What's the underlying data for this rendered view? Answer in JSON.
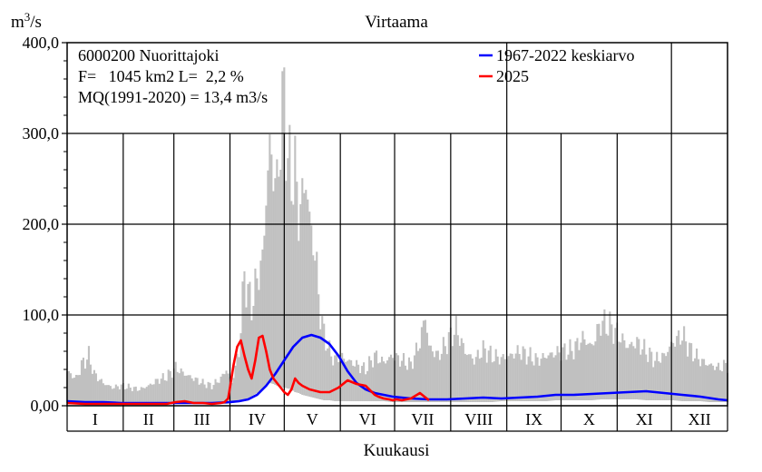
{
  "chart_data": {
    "type": "area",
    "title": "Virtaama",
    "ylabel_base": "m",
    "ylabel_exp": "3",
    "ylabel_tail": "/s",
    "xlabel": "Kuukausi",
    "ylim": [
      0,
      400
    ],
    "yticks": [
      "0,00",
      "100,0",
      "200,0",
      "300,0",
      "400,0"
    ],
    "ytick_values": [
      0,
      100,
      200,
      300,
      400
    ],
    "months": [
      "I",
      "II",
      "III",
      "IV",
      "V",
      "VI",
      "VII",
      "VIII",
      "IX",
      "X",
      "XI",
      "XII"
    ],
    "grid": true,
    "legend_position": "top-right",
    "info": {
      "line1": "6000200 Nuorittajoki",
      "line2": "F=   1045 km2 L=  2,2 %",
      "line3": "MQ(1991-2020) = 13,4 m3/s"
    },
    "range_series": {
      "name": "",
      "color": "#c0c0c0",
      "day": [
        0,
        5,
        8,
        12,
        15,
        20,
        25,
        30,
        35,
        40,
        45,
        50,
        55,
        60,
        65,
        70,
        75,
        80,
        85,
        88,
        91,
        95,
        98,
        100,
        102,
        105,
        108,
        110,
        112,
        114,
        116,
        118,
        120,
        122,
        124,
        126,
        128,
        130,
        132,
        134,
        136,
        138,
        140,
        142,
        145,
        148,
        150,
        155,
        160,
        165,
        170,
        175,
        180,
        185,
        190,
        195,
        198,
        200,
        205,
        210,
        215,
        220,
        225,
        230,
        235,
        240,
        245,
        250,
        255,
        260,
        265,
        270,
        275,
        280,
        285,
        290,
        295,
        300,
        305,
        310,
        315,
        320,
        325,
        330,
        335,
        340,
        345,
        350,
        355,
        360,
        365
      ],
      "max": [
        38,
        30,
        45,
        55,
        35,
        25,
        20,
        22,
        20,
        18,
        22,
        28,
        32,
        42,
        35,
        30,
        25,
        22,
        30,
        40,
        25,
        60,
        145,
        125,
        110,
        140,
        160,
        230,
        285,
        260,
        240,
        300,
        345,
        270,
        250,
        260,
        210,
        230,
        250,
        205,
        180,
        150,
        100,
        80,
        60,
        50,
        55,
        50,
        45,
        40,
        55,
        48,
        55,
        50,
        45,
        70,
        100,
        65,
        55,
        70,
        85,
        60,
        50,
        62,
        55,
        52,
        55,
        60,
        55,
        50,
        55,
        58,
        60,
        62,
        75,
        65,
        92,
        88,
        78,
        65,
        70,
        60,
        50,
        55,
        70,
        78,
        60,
        50,
        45,
        42,
        45
      ],
      "min": [
        3,
        3,
        2,
        2,
        2,
        2,
        2,
        2,
        2,
        2,
        2,
        2,
        2,
        2,
        2,
        2,
        2,
        3,
        2,
        2,
        3,
        4,
        5,
        8,
        10,
        14,
        18,
        22,
        25,
        24,
        22,
        20,
        20,
        19,
        18,
        15,
        14,
        12,
        11,
        10,
        9,
        8,
        7,
        6,
        6,
        5,
        5,
        5,
        5,
        5,
        5,
        5,
        4,
        4,
        4,
        4,
        4,
        4,
        4,
        4,
        4,
        4,
        4,
        4,
        4,
        5,
        5,
        5,
        5,
        5,
        5,
        6,
        6,
        6,
        6,
        6,
        7,
        7,
        7,
        7,
        7,
        6,
        6,
        6,
        6,
        5,
        5,
        5,
        4,
        4,
        4
      ]
    },
    "series": [
      {
        "name": "1967-2022 keskiarvo",
        "color": "#0000ff",
        "day": [
          0,
          10,
          20,
          30,
          40,
          50,
          60,
          70,
          80,
          90,
          95,
          100,
          105,
          110,
          115,
          120,
          125,
          130,
          135,
          140,
          145,
          150,
          155,
          160,
          165,
          170,
          175,
          180,
          185,
          190,
          200,
          210,
          220,
          230,
          240,
          250,
          260,
          270,
          280,
          290,
          300,
          310,
          320,
          330,
          340,
          350,
          360,
          365
        ],
        "values": [
          5,
          4,
          4,
          3,
          3,
          3,
          3,
          3,
          3,
          4,
          5,
          7,
          12,
          22,
          35,
          50,
          65,
          75,
          78,
          75,
          68,
          55,
          38,
          25,
          18,
          14,
          12,
          10,
          9,
          8,
          7,
          7,
          8,
          9,
          8,
          9,
          10,
          12,
          12,
          13,
          14,
          15,
          16,
          14,
          12,
          10,
          7,
          6
        ]
      },
      {
        "name": "2025",
        "color": "#ff0000",
        "day": [
          0,
          10,
          20,
          30,
          40,
          50,
          55,
          60,
          65,
          70,
          75,
          80,
          85,
          87,
          89,
          90,
          92,
          94,
          96,
          98,
          100,
          102,
          104,
          106,
          108,
          110,
          112,
          114,
          116,
          118,
          120,
          122,
          124,
          126,
          128,
          130,
          132,
          134,
          136,
          140,
          145,
          150,
          155,
          160,
          165,
          170,
          172,
          175,
          178,
          180,
          182,
          185,
          190,
          195,
          200
        ],
        "values": [
          3,
          2,
          2,
          2,
          2,
          2,
          2,
          4,
          5,
          3,
          3,
          2,
          3,
          4,
          8,
          20,
          45,
          65,
          72,
          55,
          40,
          30,
          50,
          75,
          77,
          60,
          40,
          30,
          25,
          20,
          15,
          12,
          18,
          30,
          25,
          22,
          20,
          18,
          17,
          15,
          15,
          20,
          28,
          24,
          22,
          12,
          10,
          8,
          7,
          6,
          7,
          6,
          8,
          14,
          6
        ]
      }
    ]
  }
}
